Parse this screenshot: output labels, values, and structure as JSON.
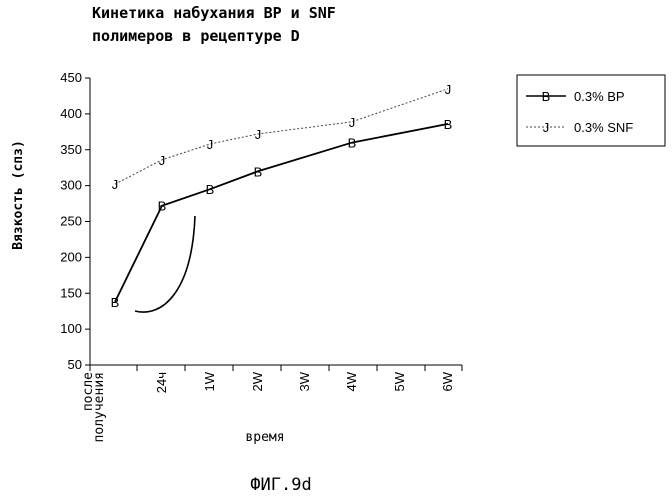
{
  "chart_data": {
    "type": "line",
    "title_line1": "Кинетика набухания BP и SNF",
    "title_line2": "полимеров в рецептуре D",
    "ylabel": "Вязкость (спз)",
    "xlabel": "время",
    "categories": [
      "после получения",
      "24ч",
      "1W",
      "2W",
      "3W",
      "4W",
      "5W",
      "6W"
    ],
    "ylim": [
      50,
      450
    ],
    "yticks": [
      50,
      100,
      150,
      200,
      250,
      300,
      350,
      400,
      450
    ],
    "series": [
      {
        "name": "0.3% BP",
        "marker": "B",
        "style": "solid",
        "points": [
          {
            "x": 0,
            "y": 138
          },
          {
            "x": 1,
            "y": 272
          },
          {
            "x": 2,
            "y": 295
          },
          {
            "x": 3,
            "y": 320
          },
          {
            "x": 5,
            "y": 360
          },
          {
            "x": 7,
            "y": 386
          }
        ]
      },
      {
        "name": "0.3% SNF",
        "marker": "J",
        "style": "dashed",
        "points": [
          {
            "x": 0,
            "y": 302
          },
          {
            "x": 1,
            "y": 336
          },
          {
            "x": 2,
            "y": 358
          },
          {
            "x": 3,
            "y": 372
          },
          {
            "x": 5,
            "y": 389
          },
          {
            "x": 7,
            "y": 435
          }
        ]
      }
    ],
    "legend_position": "right",
    "grid": false
  },
  "figure_caption": "ФИГ.9d"
}
